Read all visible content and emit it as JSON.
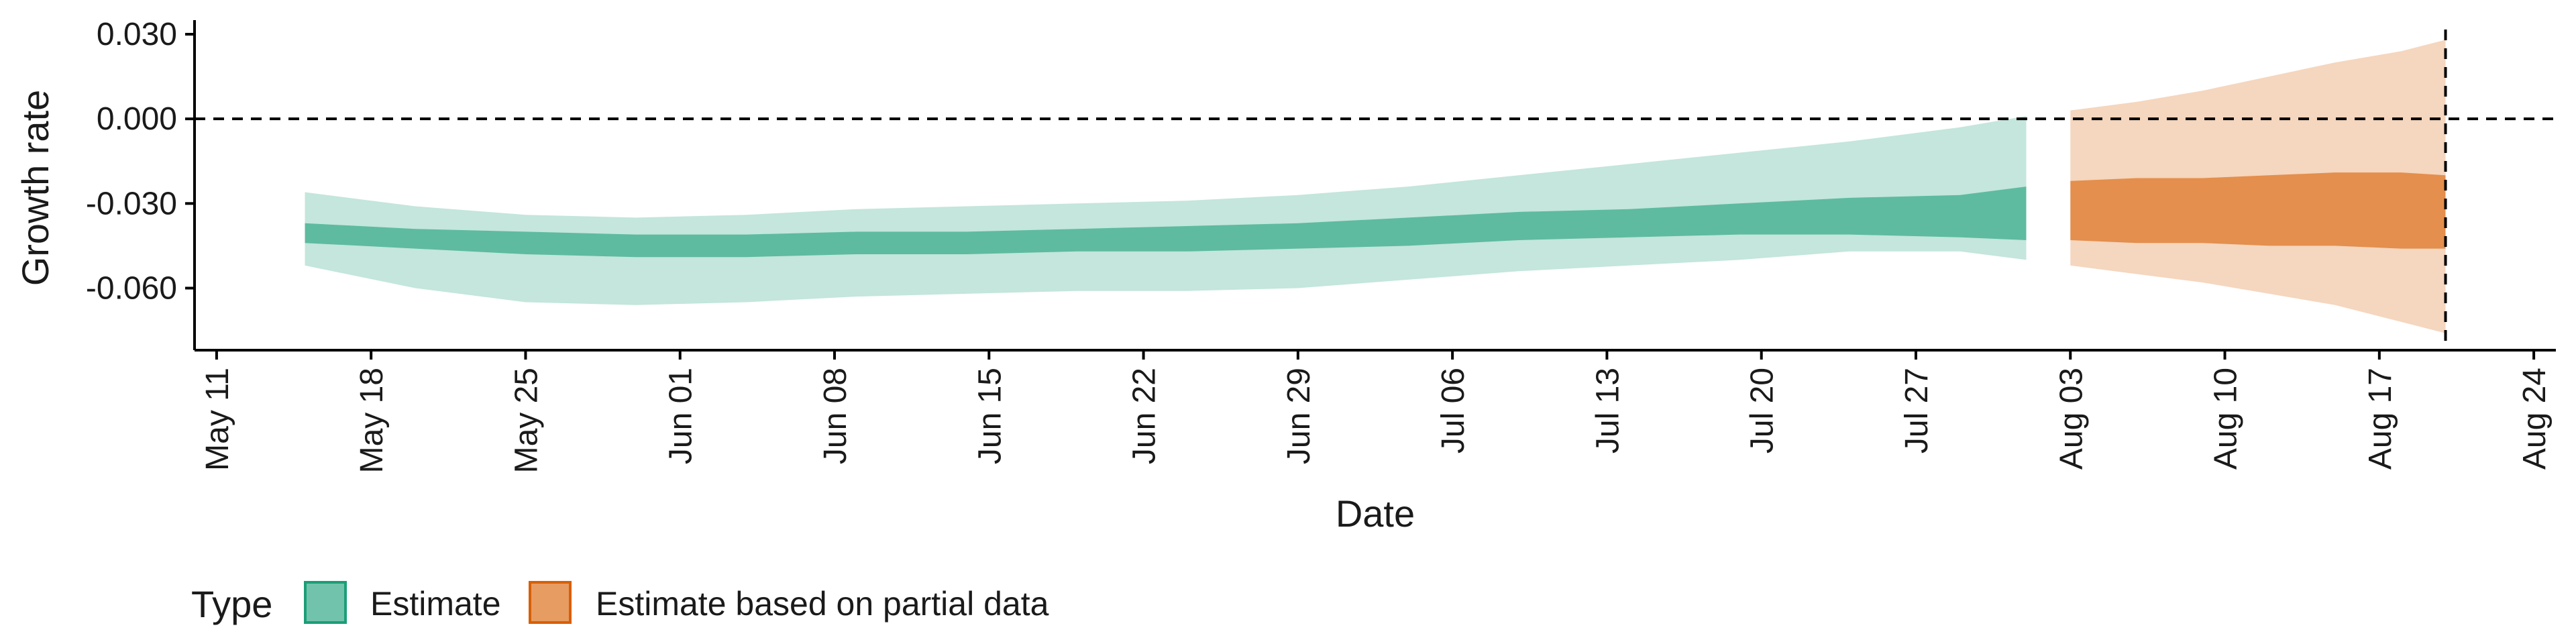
{
  "chart_data": {
    "type": "area",
    "title": "",
    "xlabel": "Date",
    "ylabel": "Growth rate",
    "x_range": [
      "2020-05-10",
      "2020-08-25"
    ],
    "ylim": [
      -0.082,
      0.035
    ],
    "y_ticks": [
      0.03,
      0.0,
      -0.03,
      -0.06
    ],
    "y_tick_labels": [
      "0.030",
      "0.000",
      "-0.030",
      "-0.060"
    ],
    "x_ticks": [
      "2020-05-11",
      "2020-05-18",
      "2020-05-25",
      "2020-06-01",
      "2020-06-08",
      "2020-06-15",
      "2020-06-22",
      "2020-06-29",
      "2020-07-06",
      "2020-07-13",
      "2020-07-20",
      "2020-07-27",
      "2020-08-03",
      "2020-08-10",
      "2020-08-17",
      "2020-08-24"
    ],
    "x_tick_labels": [
      "May 11",
      "May 18",
      "May 25",
      "Jun 01",
      "Jun 08",
      "Jun 15",
      "Jun 22",
      "Jun 29",
      "Jul 06",
      "Jul 13",
      "Jul 20",
      "Jul 27",
      "Aug 03",
      "Aug 10",
      "Aug 17",
      "Aug 24"
    ],
    "reference_lines": {
      "horizontal_y": 0.0,
      "vertical_date": "2020-08-20",
      "style": "dashed"
    },
    "grid": false,
    "legend": {
      "position": "bottom-left",
      "title": "Type",
      "entries": [
        {
          "label": "Estimate",
          "color": "#1b9e77"
        },
        {
          "label": "Estimate based on partial data",
          "color": "#d95f02"
        }
      ]
    },
    "series": [
      {
        "name": "Estimate",
        "color": "#1b9e77",
        "points": [
          {
            "x": "2020-05-15",
            "lo90": -0.052,
            "lo50": -0.044,
            "hi50": -0.037,
            "hi90": -0.026
          },
          {
            "x": "2020-05-20",
            "lo90": -0.06,
            "lo50": -0.046,
            "hi50": -0.039,
            "hi90": -0.031
          },
          {
            "x": "2020-05-25",
            "lo90": -0.065,
            "lo50": -0.048,
            "hi50": -0.04,
            "hi90": -0.034
          },
          {
            "x": "2020-05-30",
            "lo90": -0.066,
            "lo50": -0.049,
            "hi50": -0.041,
            "hi90": -0.035
          },
          {
            "x": "2020-06-04",
            "lo90": -0.065,
            "lo50": -0.049,
            "hi50": -0.041,
            "hi90": -0.034
          },
          {
            "x": "2020-06-09",
            "lo90": -0.063,
            "lo50": -0.048,
            "hi50": -0.04,
            "hi90": -0.032
          },
          {
            "x": "2020-06-14",
            "lo90": -0.062,
            "lo50": -0.048,
            "hi50": -0.04,
            "hi90": -0.031
          },
          {
            "x": "2020-06-19",
            "lo90": -0.061,
            "lo50": -0.047,
            "hi50": -0.039,
            "hi90": -0.03
          },
          {
            "x": "2020-06-24",
            "lo90": -0.061,
            "lo50": -0.047,
            "hi50": -0.038,
            "hi90": -0.029
          },
          {
            "x": "2020-06-29",
            "lo90": -0.06,
            "lo50": -0.046,
            "hi50": -0.037,
            "hi90": -0.027
          },
          {
            "x": "2020-07-04",
            "lo90": -0.057,
            "lo50": -0.045,
            "hi50": -0.035,
            "hi90": -0.024
          },
          {
            "x": "2020-07-09",
            "lo90": -0.054,
            "lo50": -0.043,
            "hi50": -0.033,
            "hi90": -0.02
          },
          {
            "x": "2020-07-14",
            "lo90": -0.052,
            "lo50": -0.042,
            "hi50": -0.032,
            "hi90": -0.016
          },
          {
            "x": "2020-07-19",
            "lo90": -0.05,
            "lo50": -0.041,
            "hi50": -0.03,
            "hi90": -0.012
          },
          {
            "x": "2020-07-24",
            "lo90": -0.047,
            "lo50": -0.041,
            "hi50": -0.028,
            "hi90": -0.008
          },
          {
            "x": "2020-07-29",
            "lo90": -0.047,
            "lo50": -0.042,
            "hi50": -0.027,
            "hi90": -0.003
          },
          {
            "x": "2020-08-01",
            "lo90": -0.05,
            "lo50": -0.043,
            "hi50": -0.024,
            "hi90": 0.001
          }
        ]
      },
      {
        "name": "Estimate based on partial data",
        "color": "#d95f02",
        "points": [
          {
            "x": "2020-08-03",
            "lo90": -0.052,
            "lo50": -0.043,
            "hi50": -0.022,
            "hi90": 0.003
          },
          {
            "x": "2020-08-06",
            "lo90": -0.055,
            "lo50": -0.044,
            "hi50": -0.021,
            "hi90": 0.006
          },
          {
            "x": "2020-08-09",
            "lo90": -0.058,
            "lo50": -0.044,
            "hi50": -0.021,
            "hi90": 0.01
          },
          {
            "x": "2020-08-12",
            "lo90": -0.062,
            "lo50": -0.045,
            "hi50": -0.02,
            "hi90": 0.015
          },
          {
            "x": "2020-08-15",
            "lo90": -0.066,
            "lo50": -0.045,
            "hi50": -0.019,
            "hi90": 0.02
          },
          {
            "x": "2020-08-18",
            "lo90": -0.072,
            "lo50": -0.046,
            "hi50": -0.019,
            "hi90": 0.024
          },
          {
            "x": "2020-08-20",
            "lo90": -0.076,
            "lo50": -0.046,
            "hi50": -0.02,
            "hi90": 0.028
          }
        ]
      }
    ]
  }
}
